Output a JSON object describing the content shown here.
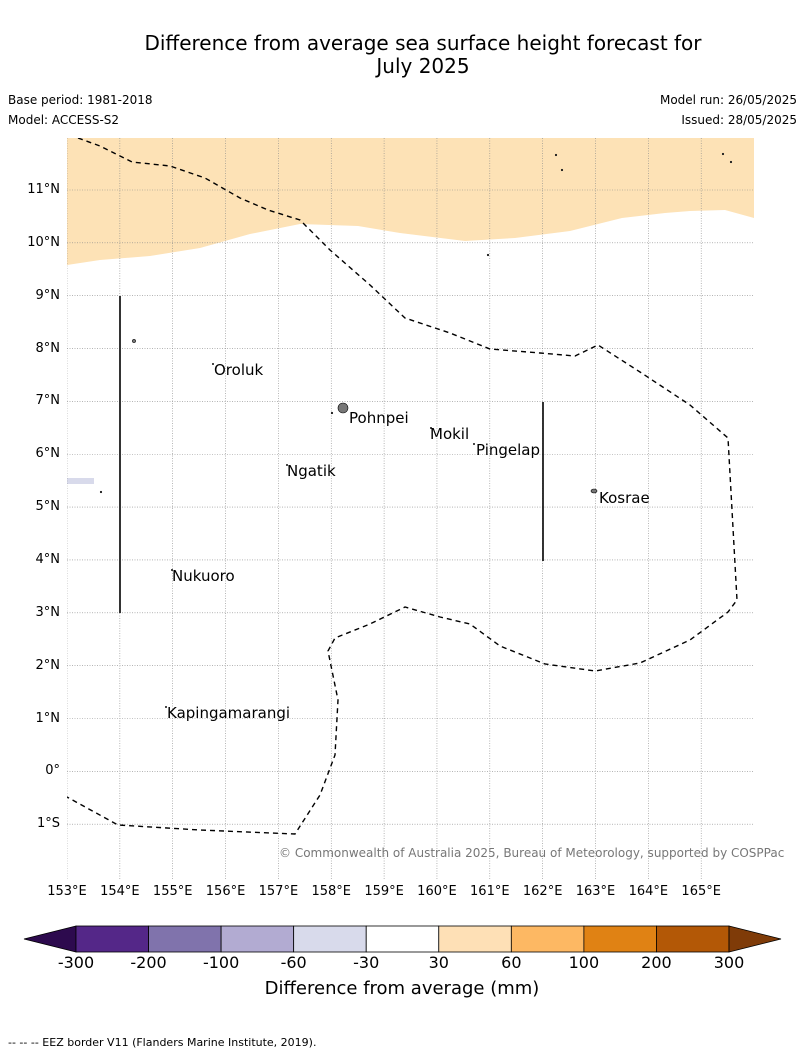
{
  "title": "Difference from average sea surface height forecast for July 2025",
  "base_period": "Base period: 1981-2018",
  "model": "Model: ACCESS-S2",
  "model_run": "Model run: 26/05/2025",
  "issued": "Issued: 28/05/2025",
  "map": {
    "lat_labels": [
      "11°N",
      "10°N",
      "9°N",
      "8°N",
      "7°N",
      "6°N",
      "5°N",
      "4°N",
      "3°N",
      "2°N",
      "1°N",
      "0°",
      "1°S"
    ],
    "lon_labels": [
      "153°E",
      "154°E",
      "155°E",
      "156°E",
      "157°E",
      "158°E",
      "159°E",
      "160°E",
      "161°E",
      "162°E",
      "163°E",
      "164°E",
      "165°E"
    ],
    "places": [
      {
        "name": "Oroluk"
      },
      {
        "name": "Pohnpei"
      },
      {
        "name": "Mokil"
      },
      {
        "name": "Pingelap"
      },
      {
        "name": "Ngatik"
      },
      {
        "name": "Kosrae"
      },
      {
        "name": "Nukuoro"
      },
      {
        "name": "Kapingamarangi"
      }
    ],
    "anomaly_color_north": "#fde2b6",
    "eez_style": "dashed"
  },
  "copyright": "© Commonwealth of Australia 2025, Bureau of Meteorology, supported by COSPPac",
  "colorbar": {
    "ticks": [
      "-300",
      "-200",
      "-100",
      "-60",
      "-30",
      "30",
      "60",
      "100",
      "200",
      "300"
    ],
    "colors": [
      "#2d0a4e",
      "#542788",
      "#8073ac",
      "#b2abd2",
      "#d8daeb",
      "#ffffff",
      "#fee0b6",
      "#fdb863",
      "#e08214",
      "#b35806",
      "#7f3b08"
    ],
    "label": "Difference from average (mm)"
  },
  "footnote": "-- -- -- EEZ border V11 (Flanders Marine Institute, 2019)."
}
